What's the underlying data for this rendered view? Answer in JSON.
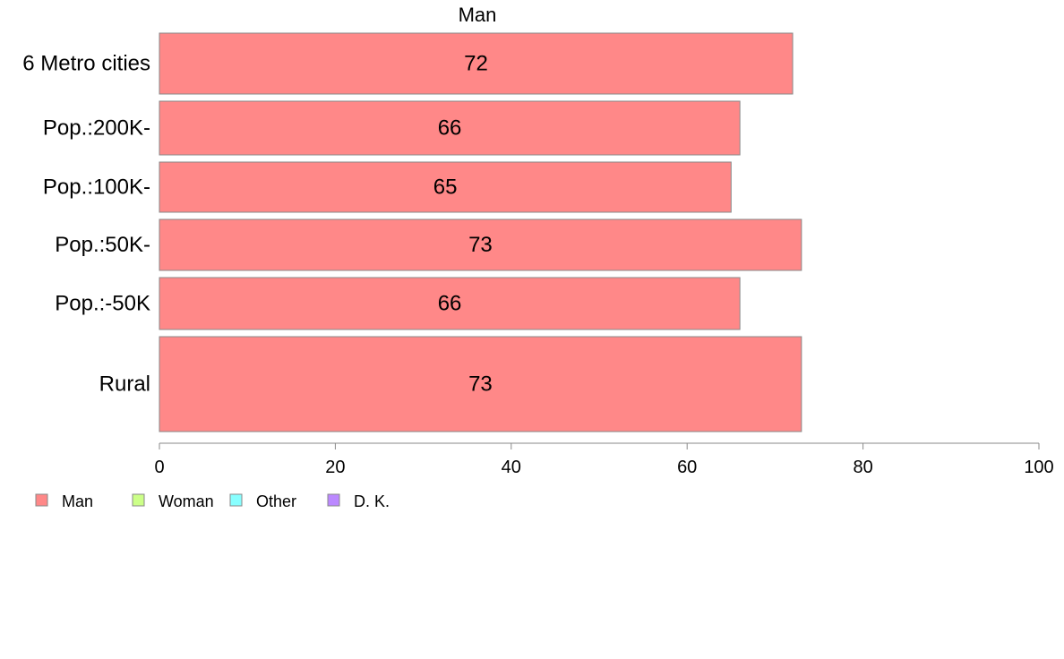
{
  "chart_data": {
    "type": "bar",
    "orientation": "horizontal",
    "title": "Man",
    "categories": [
      "6 Metro cities",
      "Pop.:200K-",
      "Pop.:100K-",
      "Pop.:50K-",
      "Pop.:-50K",
      "Rural"
    ],
    "series": [
      {
        "name": "Man",
        "values": [
          72,
          66,
          65,
          73,
          66,
          73
        ],
        "color": "#ff8888"
      }
    ],
    "xlim": [
      0,
      100
    ],
    "xticks": [
      0,
      20,
      40,
      60,
      80,
      100
    ],
    "grid": false,
    "legend": {
      "placement": "bottom-left",
      "items": [
        {
          "label": "Man",
          "color": "#ff8888"
        },
        {
          "label": "Woman",
          "color": "#ccff88"
        },
        {
          "label": "Other",
          "color": "#88ffff"
        },
        {
          "label": "D. K.",
          "color": "#bb88ff"
        }
      ]
    }
  }
}
